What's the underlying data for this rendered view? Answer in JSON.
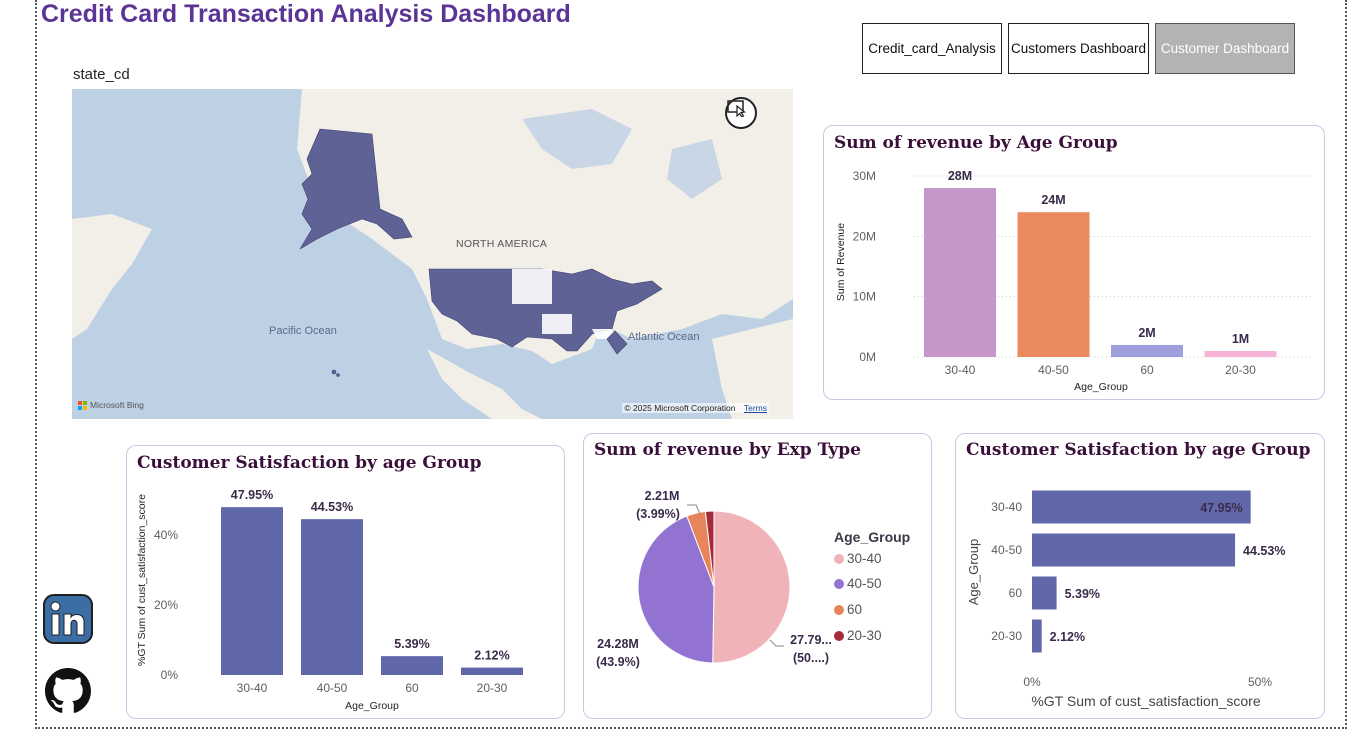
{
  "header": {
    "title": "Credit Card Transaction Analysis Dashboard",
    "nav": [
      {
        "label": "Credit_card_Analysis",
        "active": false
      },
      {
        "label": "Customers Dashboard",
        "active": false
      },
      {
        "label": "Customer Dashboard",
        "active": true
      }
    ]
  },
  "map": {
    "label": "state_cd",
    "regions": {
      "north_america": "NORTH AMERICA",
      "pacific": "Pacific Ocean",
      "atlantic": "Atlantic Ocean"
    },
    "attribution": "Microsoft Bing",
    "copyright": "© 2025 Microsoft Corporation",
    "terms": "Terms"
  },
  "colors": {
    "title": "#5a3596",
    "bar_30_40": "#c496c9",
    "bar_40_50": "#eb895f",
    "bar_60": "#9da0dc",
    "bar_20_30": "#f7b3d8",
    "navy_bar": "#6068aa",
    "pie_30_40": "#f0b4b8",
    "pie_40_50": "#9373d2",
    "pie_60": "#e8845a",
    "pie_20_30": "#a52a3c",
    "state_fill": "#5e6295"
  },
  "charts": {
    "revenue_by_age": {
      "title": "Sum of revenue by Age Group",
      "ylabel": "Sum of Revenue",
      "xlabel": "Age_Group",
      "yticks": [
        "0M",
        "10M",
        "20M",
        "30M"
      ]
    },
    "satisfaction_col": {
      "title": "Customer Satisfaction by age Group",
      "ylabel": "%GT Sum of cust_satisfaction_score",
      "xlabel": "Age_Group",
      "yticks": [
        "0%",
        "20%",
        "40%"
      ]
    },
    "revenue_by_exp": {
      "title": "Sum of revenue by Exp Type",
      "legend_title": "Age_Group",
      "legend": [
        "30-40",
        "40-50",
        "60",
        "20-30"
      ],
      "labels": [
        {
          "line1": "2.21M",
          "line2": "(3.99%)"
        },
        {
          "line1": "24.28M",
          "line2": "(43.9%)"
        },
        {
          "line1": "27.79...",
          "line2": "(50....)"
        }
      ]
    },
    "satisfaction_bar": {
      "title": "Customer Satisfaction by age Group",
      "ylabel": "Age_Group",
      "xlabel": "%GT Sum of cust_satisfaction_score",
      "xticks": [
        "0%",
        "50%"
      ]
    }
  },
  "chart_data": [
    {
      "type": "bar",
      "title": "Sum of revenue by Age Group",
      "categories": [
        "30-40",
        "40-50",
        "60",
        "20-30"
      ],
      "values": [
        28,
        24,
        2,
        1
      ],
      "data_labels": [
        "28M",
        "24M",
        "2M",
        "1M"
      ],
      "ylabel": "Sum of Revenue",
      "xlabel": "Age_Group",
      "ylim": [
        0,
        30
      ],
      "unit": "M"
    },
    {
      "type": "bar",
      "title": "Customer Satisfaction by age Group",
      "categories": [
        "30-40",
        "40-50",
        "60",
        "20-30"
      ],
      "values": [
        47.95,
        44.53,
        5.39,
        2.12
      ],
      "data_labels": [
        "47.95%",
        "44.53%",
        "5.39%",
        "2.12%"
      ],
      "ylabel": "%GT Sum of cust_satisfaction_score",
      "xlabel": "Age_Group",
      "ylim": [
        0,
        50
      ]
    },
    {
      "type": "pie",
      "title": "Sum of revenue by Exp Type",
      "categories": [
        "30-40",
        "40-50",
        "60",
        "20-30"
      ],
      "values": [
        27.79,
        24.28,
        2.21,
        1.0
      ],
      "percent": [
        50.2,
        43.9,
        3.99,
        1.9
      ]
    },
    {
      "type": "bar",
      "orientation": "horizontal",
      "title": "Customer Satisfaction by age Group",
      "categories": [
        "30-40",
        "40-50",
        "60",
        "20-30"
      ],
      "values": [
        47.95,
        44.53,
        5.39,
        2.12
      ],
      "data_labels": [
        "47.95%",
        "44.53%",
        "5.39%",
        "2.12%"
      ],
      "ylabel": "Age_Group",
      "xlabel": "%GT Sum of cust_satisfaction_score",
      "xlim": [
        0,
        50
      ]
    }
  ]
}
